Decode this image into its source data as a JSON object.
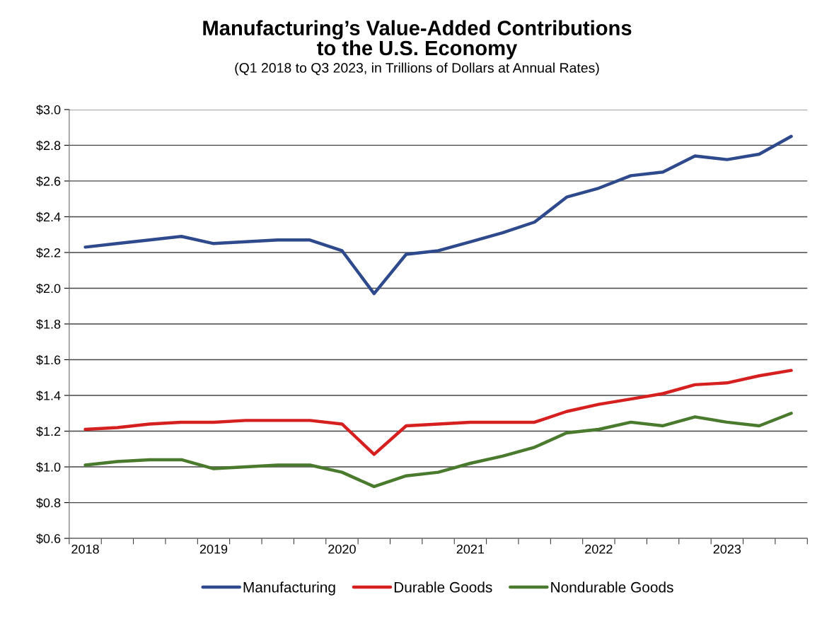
{
  "chart_data": {
    "type": "line",
    "title": "Manufacturing’s Value-Added Contributions\nto the U.S. Economy",
    "subtitle": "(Q1 2018 to Q3 2023, in Trillions of Dollars at Annual Rates)",
    "categories": [
      "2018",
      null,
      null,
      null,
      "2019",
      null,
      null,
      null,
      "2020",
      null,
      null,
      null,
      "2021",
      null,
      null,
      null,
      "2022",
      null,
      null,
      null,
      "2023",
      null,
      null
    ],
    "series": [
      {
        "name": "Manufacturing",
        "color": "#2e4a8c",
        "values": [
          2.23,
          2.25,
          2.27,
          2.29,
          2.25,
          2.26,
          2.27,
          2.27,
          2.21,
          1.97,
          2.19,
          2.21,
          2.26,
          2.31,
          2.37,
          2.51,
          2.56,
          2.63,
          2.65,
          2.74,
          2.72,
          2.75,
          2.85
        ]
      },
      {
        "name": "Durable Goods",
        "color": "#d62020",
        "values": [
          1.21,
          1.22,
          1.24,
          1.25,
          1.25,
          1.26,
          1.26,
          1.26,
          1.24,
          1.07,
          1.23,
          1.24,
          1.25,
          1.25,
          1.25,
          1.31,
          1.35,
          1.38,
          1.41,
          1.46,
          1.47,
          1.51,
          1.54
        ]
      },
      {
        "name": "Nondurable Goods",
        "color": "#4a7a2e",
        "values": [
          1.01,
          1.03,
          1.04,
          1.04,
          0.99,
          1.0,
          1.01,
          1.01,
          0.97,
          0.89,
          0.95,
          0.97,
          1.02,
          1.06,
          1.11,
          1.19,
          1.21,
          1.25,
          1.23,
          1.28,
          1.25,
          1.23,
          1.3
        ]
      }
    ],
    "ylim": [
      0.6,
      3.0
    ],
    "yticks": [
      {
        "value": 0.6,
        "label": "$0.6"
      },
      {
        "value": 0.8,
        "label": "$0.8"
      },
      {
        "value": 1.0,
        "label": "$1.0"
      },
      {
        "value": 1.2,
        "label": "$1.2"
      },
      {
        "value": 1.4,
        "label": "$1.4"
      },
      {
        "value": 1.6,
        "label": "$1.6"
      },
      {
        "value": 1.8,
        "label": "$1.8"
      },
      {
        "value": 2.0,
        "label": "$2.0"
      },
      {
        "value": 2.2,
        "label": "$2.2"
      },
      {
        "value": 2.4,
        "label": "$2.4"
      },
      {
        "value": 2.6,
        "label": "$2.6"
      },
      {
        "value": 2.8,
        "label": "$2.8"
      },
      {
        "value": 3.0,
        "label": "$3.0"
      }
    ],
    "grid": "y",
    "legend": "bottom",
    "marker": "none",
    "line_style": "solid"
  }
}
